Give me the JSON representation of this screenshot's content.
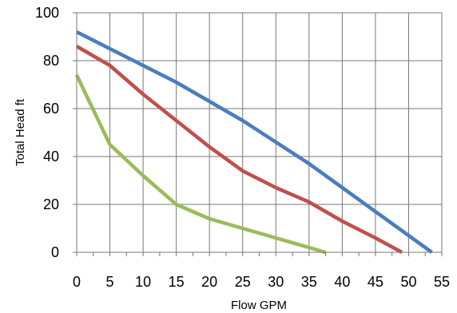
{
  "chart_data": {
    "type": "line",
    "title": "",
    "xlabel": "Flow  GPM",
    "ylabel": "Total Head  ft",
    "xlim": [
      0,
      55
    ],
    "ylim": [
      0,
      100
    ],
    "xticks": [
      0,
      5,
      10,
      15,
      20,
      25,
      30,
      35,
      40,
      45,
      50,
      55
    ],
    "yticks": [
      0,
      20,
      40,
      60,
      80,
      100
    ],
    "xtick_labels": [
      "0",
      "5",
      "10",
      "15",
      "20",
      "25",
      "30",
      "35",
      "40",
      "45",
      "50",
      "55"
    ],
    "ytick_labels": [
      "0",
      "20",
      "40",
      "60",
      "80",
      "100"
    ],
    "grid": true,
    "legend": "none",
    "series": [
      {
        "color": "#4a7dbf",
        "x": [
          0,
          5,
          10,
          15,
          20,
          25,
          30,
          35,
          40,
          45,
          50,
          53.5
        ],
        "y": [
          92,
          85,
          78,
          71,
          63,
          55,
          46,
          37,
          27,
          17,
          7,
          0
        ]
      },
      {
        "color": "#c0504d",
        "x": [
          0,
          5,
          10,
          15,
          20,
          25,
          30,
          35,
          40,
          45,
          49
        ],
        "y": [
          86,
          78,
          66,
          55,
          44,
          34,
          27,
          21,
          13,
          6,
          0
        ]
      },
      {
        "color": "#9bbb59",
        "x": [
          0,
          5,
          10,
          15,
          20,
          25,
          30,
          35,
          37.5
        ],
        "y": [
          74,
          45,
          32,
          20,
          14,
          10,
          6,
          2,
          0
        ]
      }
    ]
  }
}
